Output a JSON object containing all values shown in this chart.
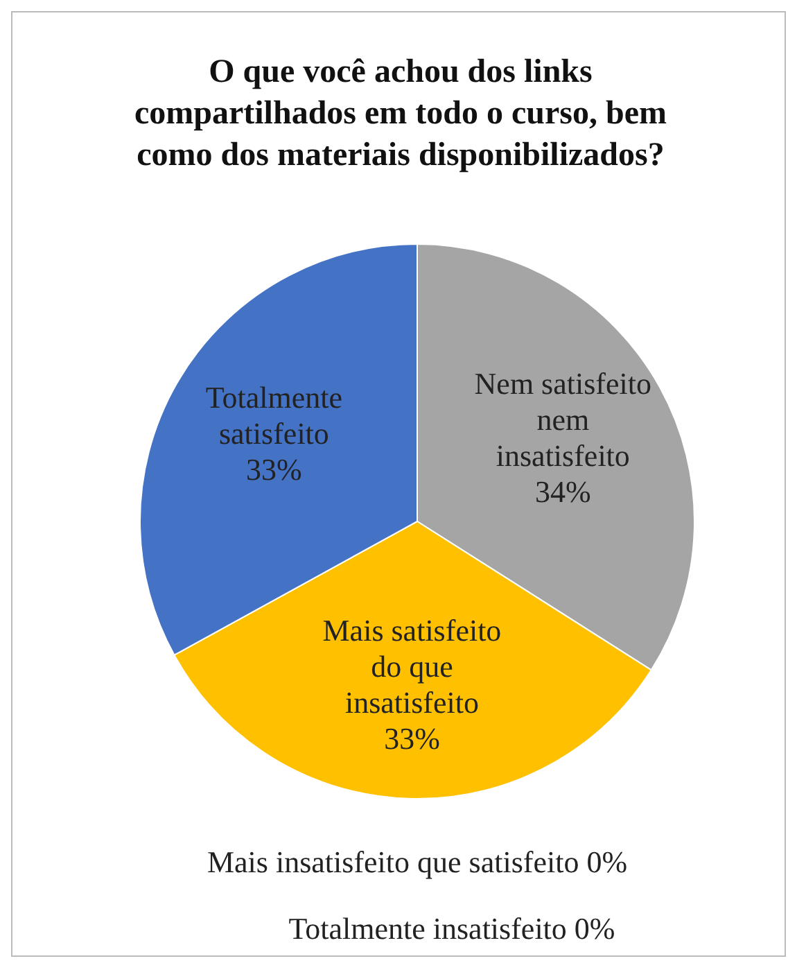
{
  "chart_data": {
    "type": "pie",
    "title": "O que você achou dos links compartilhados em todo o curso, bem como dos materiais disponibilizados?",
    "categories": [
      "Nem satisfeito nem insatisfeito",
      "Mais satisfeito do que insatisfeito",
      "Totalmente satisfeito",
      "Mais insatisfeito que satisfeito",
      "Totalmente insatisfeito"
    ],
    "values": [
      34,
      33,
      33,
      0,
      0
    ],
    "colors": [
      "#a5a5a5",
      "#ffc000",
      "#4472c4",
      "#ed7d31",
      "#5b9bd5"
    ],
    "value_labels": [
      "34%",
      "33%",
      "33%",
      "0%",
      "0%"
    ],
    "legend": false
  }
}
